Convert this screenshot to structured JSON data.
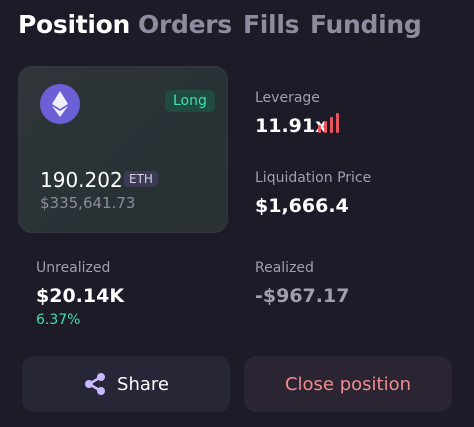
{
  "tabs": [
    "Position",
    "Orders",
    "Fills",
    "Funding"
  ],
  "card": {
    "side": "Long",
    "amount": "190.202",
    "symbol": "ETH",
    "usd_value": "$335,641.73"
  },
  "stats": {
    "leverage": {
      "label": "Leverage",
      "value": "11.91x"
    },
    "liquidation": {
      "label": "Liquidation Price",
      "value": "$1,666.4"
    },
    "unrealized": {
      "label": "Unrealized",
      "value": "$20.14K",
      "percent": "6.37%"
    },
    "realized": {
      "label": "Realized",
      "value": "-$967.17"
    }
  },
  "buttons": {
    "share": "Share",
    "close": "Close position"
  }
}
